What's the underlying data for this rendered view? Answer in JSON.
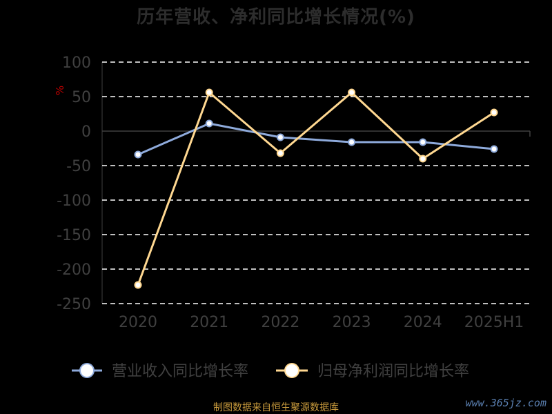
{
  "title": "历年营收、净利同比增长情况(%)",
  "source_text": "制图数据来自恒生聚源数据库",
  "watermark": "www.365jz.com",
  "colors": {
    "background": "#000000",
    "revenue_line": "#8eaadb",
    "profit_line": "#ffd891",
    "grid": "#ffffff",
    "axis_text": "#404040",
    "unit_text": "#c00000",
    "zero_axis": "#404040"
  },
  "chart_data": {
    "type": "line",
    "categories": [
      "2020",
      "2021",
      "2022",
      "2023",
      "2024",
      "2025H1"
    ],
    "ylabel": "%",
    "ylim": [
      -250,
      100
    ],
    "yticks": [
      100,
      50,
      0,
      -50,
      -100,
      -150,
      -200,
      -250
    ],
    "grid": true,
    "legend_position": "bottom",
    "series": [
      {
        "name": "营业收入同比增长率",
        "values": [
          -34,
          11,
          -9,
          -16,
          -16,
          -26
        ]
      },
      {
        "name": "归母净利润同比增长率",
        "values": [
          -223,
          56,
          -32,
          56,
          -40,
          27
        ]
      }
    ]
  }
}
